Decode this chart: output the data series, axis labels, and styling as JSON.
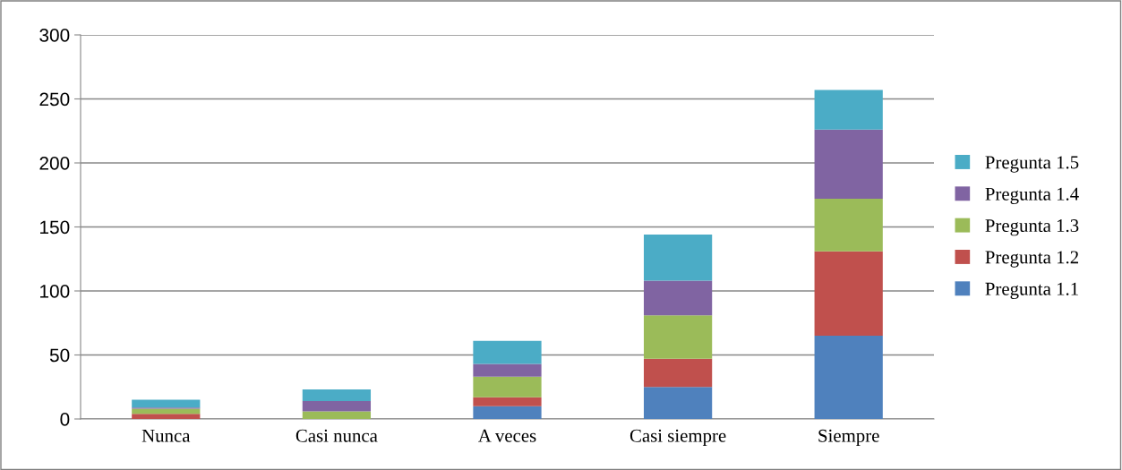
{
  "chart_data": {
    "type": "bar",
    "stacked": true,
    "categories": [
      "Nunca",
      "Casi nunca",
      "A veces",
      "Casi siempre",
      "Siempre"
    ],
    "series": [
      {
        "name": "Pregunta 1.1",
        "color": "#4f81bd",
        "values": [
          0,
          0,
          10,
          25,
          65
        ]
      },
      {
        "name": "Pregunta 1.2",
        "color": "#c0504d",
        "values": [
          4,
          0,
          7,
          22,
          66
        ]
      },
      {
        "name": "Pregunta 1.3",
        "color": "#9bbb59",
        "values": [
          4,
          6,
          16,
          34,
          41
        ]
      },
      {
        "name": "Pregunta 1.4",
        "color": "#8064a2",
        "values": [
          1,
          8,
          10,
          27,
          54
        ]
      },
      {
        "name": "Pregunta 1.5",
        "color": "#4bacc6",
        "values": [
          6,
          9,
          18,
          36,
          31
        ]
      }
    ],
    "ylim": [
      0,
      300
    ],
    "yticks": [
      0,
      50,
      100,
      150,
      200,
      250,
      300
    ],
    "grid": "y",
    "legend": "right"
  }
}
